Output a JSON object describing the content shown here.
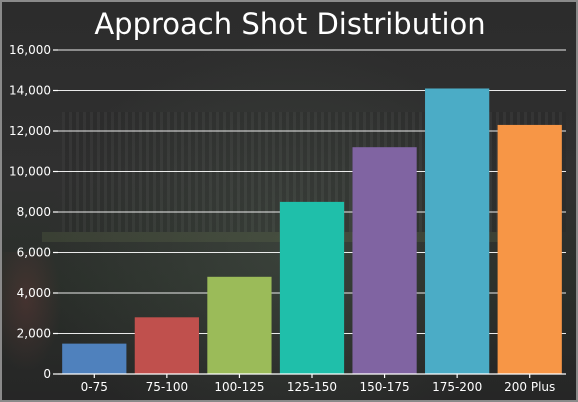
{
  "chart_data": {
    "type": "bar",
    "title": "Approach Shot Distribution",
    "xlabel": "",
    "ylabel": "",
    "categories": [
      "0-75",
      "75-100",
      "100-125",
      "125-150",
      "150-175",
      "175-200",
      "200 Plus"
    ],
    "values": [
      1500,
      2800,
      4800,
      8500,
      11200,
      14100,
      12300
    ],
    "colors": [
      "#4f81bd",
      "#c0504d",
      "#9bbb59",
      "#1fbfaa",
      "#8064a2",
      "#4bacc6",
      "#f79646"
    ],
    "ylim": [
      0,
      16000
    ],
    "yticks": [
      0,
      2000,
      4000,
      6000,
      8000,
      10000,
      12000,
      14000,
      16000
    ],
    "ytick_labels": [
      "0",
      "2,000",
      "4,000",
      "6,000",
      "8,000",
      "10,000",
      "12,000",
      "14,000",
      "16,000"
    ],
    "grid": true,
    "legend": "none"
  }
}
